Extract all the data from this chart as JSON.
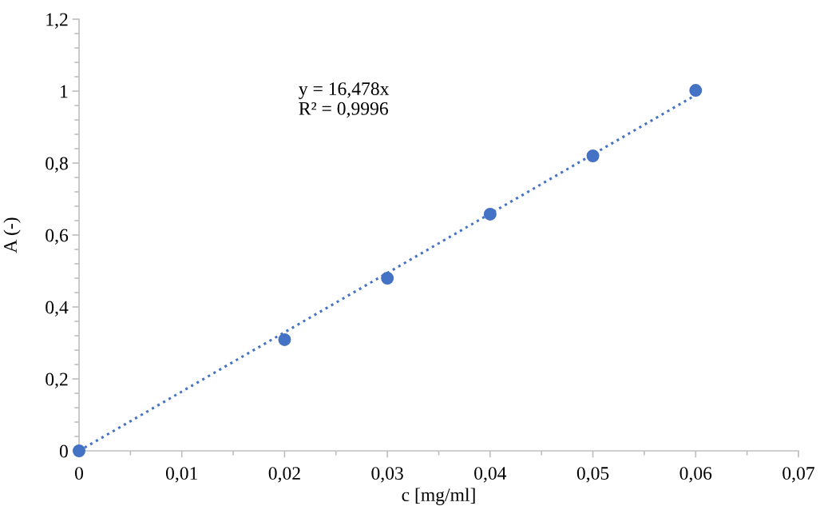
{
  "chart_data": {
    "type": "scatter",
    "xlabel": "c [mg/ml]",
    "ylabel": "A (-)",
    "x": [
      0,
      0.02,
      0.03,
      0.04,
      0.05,
      0.06
    ],
    "series": [
      {
        "color": "#4472c4",
        "marker": "circle",
        "values": [
          0,
          0.309,
          0.48,
          0.658,
          0.82,
          1.002
        ]
      },
      {
        "type": "line",
        "color": "#4472c4",
        "line_style": "dotted",
        "marker": "none",
        "x": [
          0,
          0.06
        ],
        "values": [
          0,
          0.989
        ]
      }
    ],
    "annotations": [
      "y = 16,478x",
      "R² = 0,9996"
    ],
    "xlim": [
      0,
      0.07
    ],
    "ylim": [
      0,
      1.2
    ],
    "xticks": [
      0,
      {
        "value": 0.01,
        "label": "0,01"
      },
      {
        "value": 0.02,
        "label": "0,02"
      },
      {
        "value": 0.03,
        "label": "0,03"
      },
      {
        "value": 0.04,
        "label": "0,04"
      },
      {
        "value": 0.05,
        "label": "0,05"
      },
      {
        "value": 0.06,
        "label": "0,06"
      },
      {
        "value": 0.07,
        "label": "0,07"
      }
    ],
    "yticks": [
      0,
      {
        "value": 0.2,
        "label": "0,2"
      },
      {
        "value": 0.4,
        "label": "0,4"
      },
      {
        "value": 0.6,
        "label": "0,6"
      },
      {
        "value": 0.8,
        "label": "0,8"
      },
      1,
      {
        "value": 1.2,
        "label": "1,2"
      }
    ],
    "grid": false,
    "legend": false
  }
}
